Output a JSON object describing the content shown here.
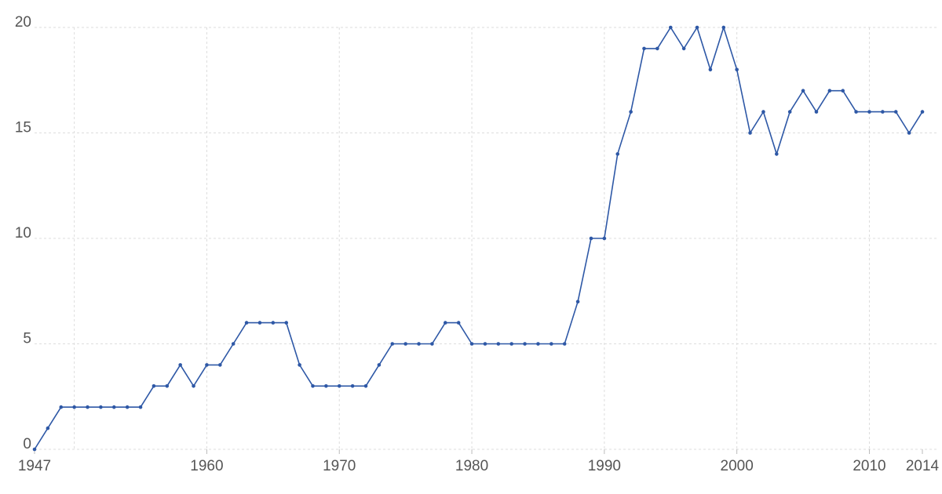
{
  "chart_data": {
    "type": "line",
    "x": [
      1947,
      1948,
      1949,
      1950,
      1951,
      1952,
      1953,
      1954,
      1955,
      1956,
      1957,
      1958,
      1959,
      1960,
      1961,
      1962,
      1963,
      1964,
      1965,
      1966,
      1967,
      1968,
      1969,
      1970,
      1971,
      1972,
      1973,
      1974,
      1975,
      1976,
      1977,
      1978,
      1979,
      1980,
      1981,
      1982,
      1983,
      1984,
      1985,
      1986,
      1987,
      1988,
      1989,
      1990,
      1991,
      1992,
      1993,
      1994,
      1995,
      1996,
      1997,
      1998,
      1999,
      2000,
      2001,
      2002,
      2003,
      2004,
      2005,
      2006,
      2007,
      2008,
      2009,
      2010,
      2011,
      2012,
      2013,
      2014
    ],
    "values": [
      0,
      1,
      2,
      2,
      2,
      2,
      2,
      2,
      2,
      3,
      3,
      4,
      3,
      4,
      4,
      5,
      6,
      6,
      6,
      6,
      4,
      3,
      3,
      3,
      3,
      3,
      4,
      5,
      5,
      5,
      5,
      6,
      6,
      5,
      5,
      5,
      5,
      5,
      5,
      5,
      5,
      7,
      10,
      10,
      14,
      16,
      19,
      19,
      20,
      19,
      20,
      18,
      20,
      18,
      15,
      16,
      14,
      16,
      17,
      16,
      17,
      17,
      16,
      16,
      16,
      16,
      15,
      16
    ],
    "color": "#2e58a6",
    "xlim": [
      1947,
      2014
    ],
    "ylim": [
      0,
      20
    ],
    "xticks": [
      1947,
      1960,
      1970,
      1980,
      1990,
      2000,
      2010,
      2014
    ],
    "xgrid": [
      1950,
      1960,
      1970,
      1980,
      1990,
      2000,
      2010
    ],
    "yticks": [
      0,
      5,
      10,
      15,
      20
    ],
    "grid": true
  }
}
